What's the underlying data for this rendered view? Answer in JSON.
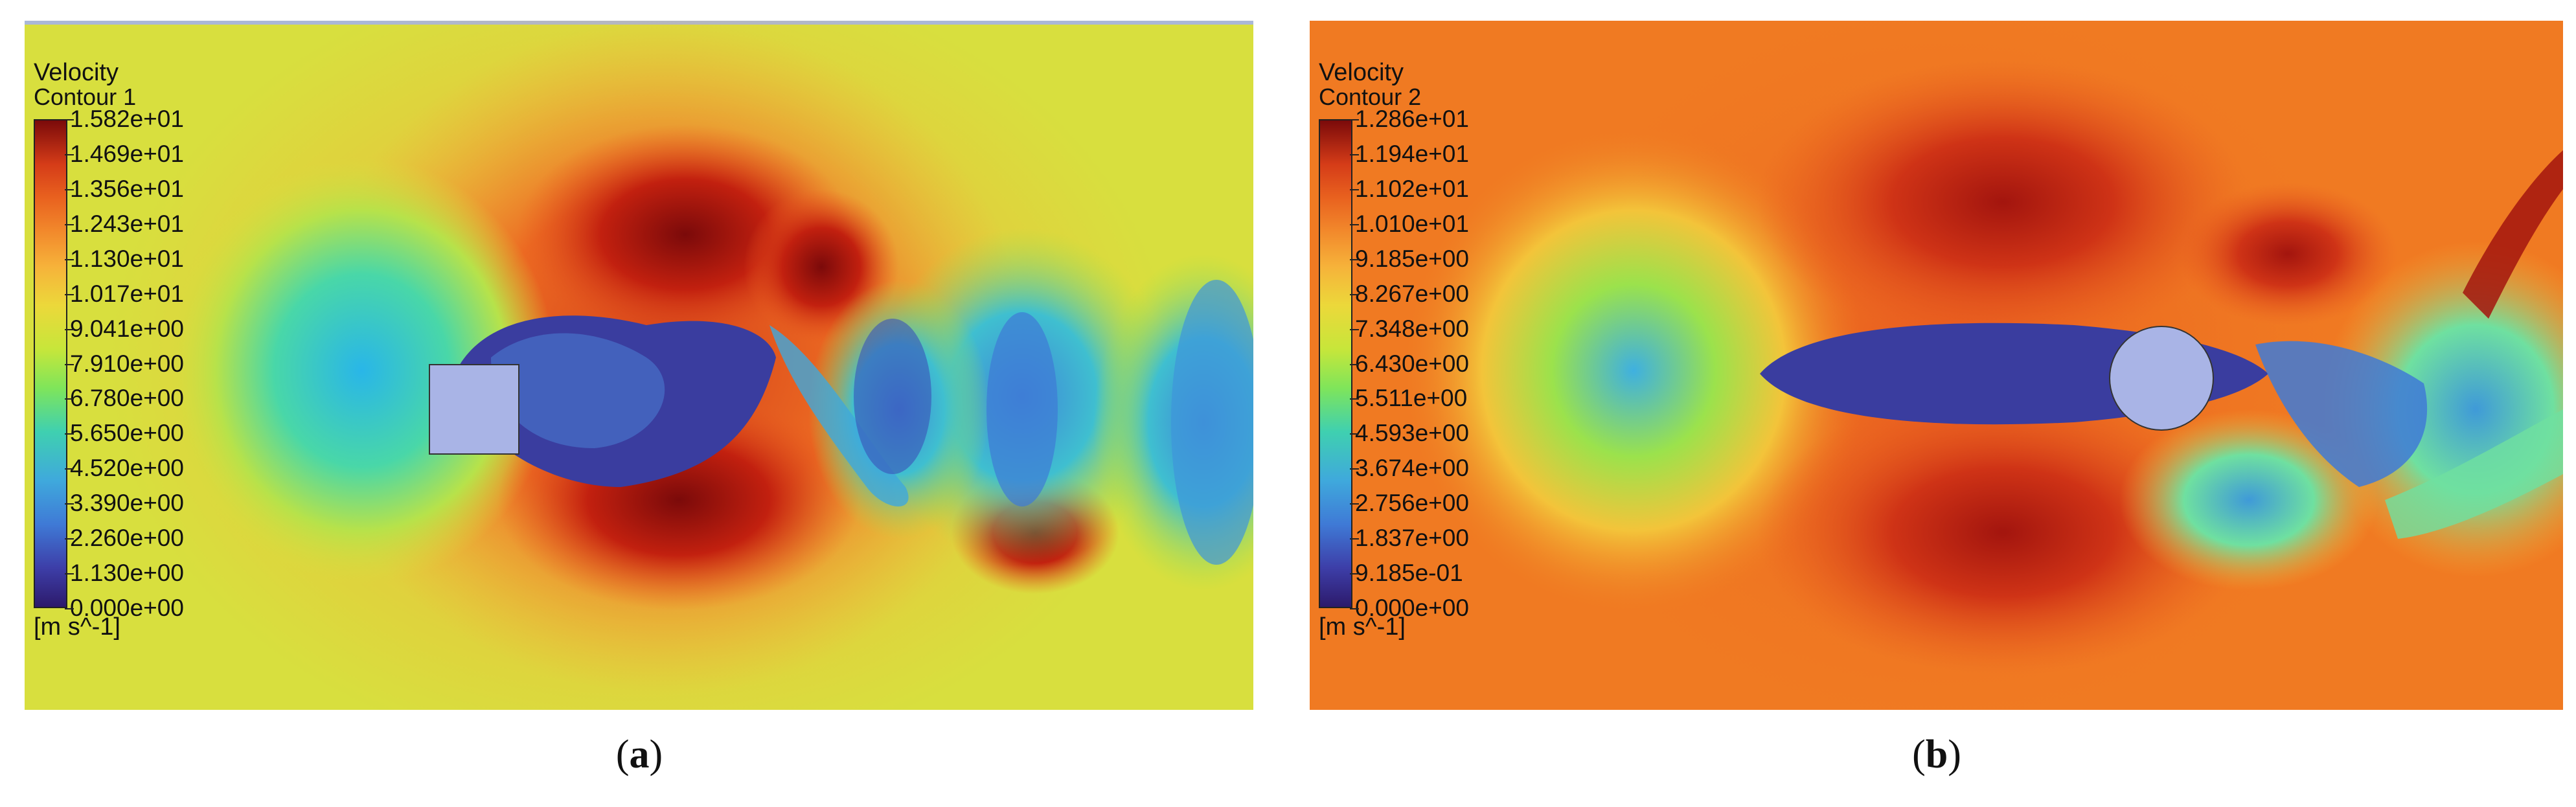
{
  "panels": [
    {
      "id": "a",
      "legend_title": "Velocity",
      "legend_subtitle": "Contour 1",
      "colorbar_ticks": [
        "1.582e+01",
        "1.469e+01",
        "1.356e+01",
        "1.243e+01",
        "1.130e+01",
        "1.017e+01",
        "9.041e+00",
        "7.910e+00",
        "6.780e+00",
        "5.650e+00",
        "4.520e+00",
        "3.390e+00",
        "2.260e+00",
        "1.130e+00",
        "0.000e+00"
      ],
      "units": "[m s^-1]",
      "caption_open": "(",
      "caption_letter": "a",
      "caption_close": ")",
      "obstacle": "square",
      "background_color": "#d8df3e"
    },
    {
      "id": "b",
      "legend_title": "Velocity",
      "legend_subtitle": "Contour 2",
      "colorbar_ticks": [
        "1.286e+01",
        "1.194e+01",
        "1.102e+01",
        "1.010e+01",
        "9.185e+00",
        "8.267e+00",
        "7.348e+00",
        "6.430e+00",
        "5.511e+00",
        "4.593e+00",
        "3.674e+00",
        "2.756e+00",
        "1.837e+00",
        "9.185e-01",
        "0.000e+00"
      ],
      "units": "[m s^-1]",
      "caption_open": "(",
      "caption_letter": "b",
      "caption_close": ")",
      "obstacle": "circle",
      "background_color": "#f07a22"
    }
  ],
  "colors": {
    "obstacle_fill": "#a9b4e6",
    "colormap": [
      "#2d1a6b",
      "#3d3ea8",
      "#3f7ad6",
      "#3fa9dc",
      "#3fd0b0",
      "#7fe55a",
      "#c7e63a",
      "#ecd83a",
      "#f6b23a",
      "#f28a2c",
      "#e9621f",
      "#d53c18",
      "#a8170f",
      "#7b0a0a"
    ]
  }
}
